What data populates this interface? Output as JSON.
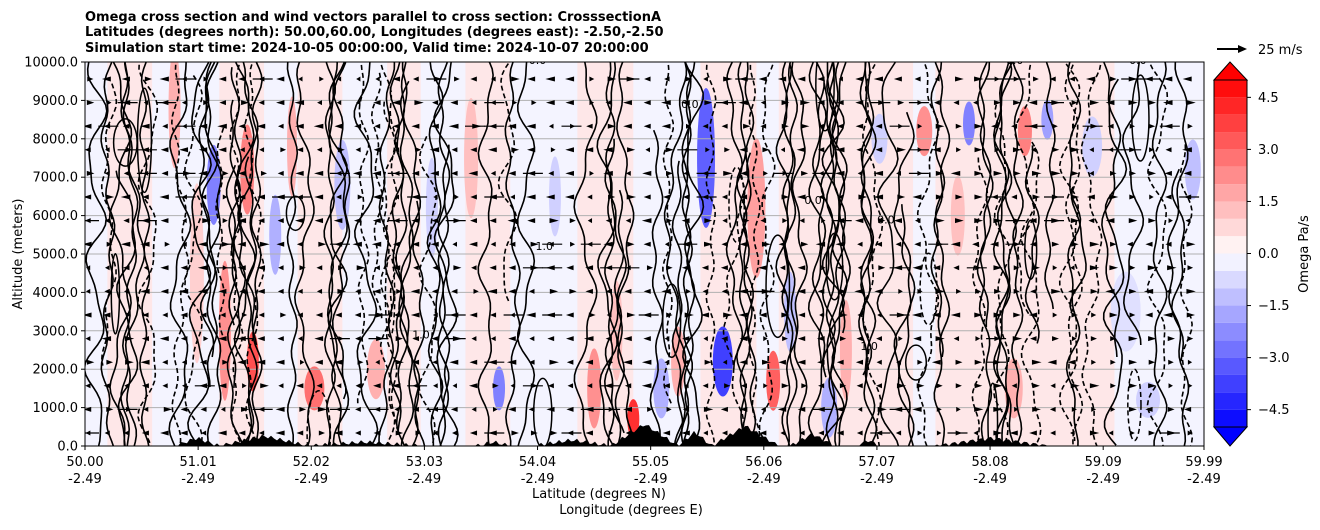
{
  "chart_data": {
    "type": "contour-cross-section",
    "title_lines": [
      "Omega cross section and wind vectors parallel to cross section: CrosssectionA",
      "Latitudes (degrees north): 50.00,60.00, Longitudes (degrees east): -2.50,-2.50",
      "Simulation start time: 2024-10-05 00:00:00, Valid time: 2024-10-07 20:00:00"
    ],
    "ylabel": "Altitude (meters)",
    "xlabel_lat": "Latitude (degrees N)",
    "xlabel_lon": "Longitude (degrees E)",
    "ylim": [
      0,
      10000
    ],
    "yticks": [
      0,
      1000,
      2000,
      3000,
      4000,
      5000,
      6000,
      7000,
      8000,
      9000,
      10000
    ],
    "ytick_labels": [
      "0.0",
      "1000.0",
      "2000.0",
      "3000.0",
      "4000.0",
      "5000.0",
      "6000.0",
      "7000.0",
      "8000.0",
      "9000.0",
      "10000.0"
    ],
    "xticks_lat": [
      "50.00",
      "51.01",
      "52.02",
      "53.03",
      "54.04",
      "55.05",
      "56.06",
      "57.07",
      "58.08",
      "59.09",
      "59.99"
    ],
    "xticks_lon": [
      "-2.49",
      "-2.49",
      "-2.49",
      "-2.49",
      "-2.49",
      "-2.49",
      "-2.49",
      "-2.49",
      "-2.49",
      "-2.49",
      "-2.49"
    ],
    "colorbar": {
      "label": "Omega Pa/s",
      "range": [
        -5.0,
        5.0
      ],
      "extend": "both",
      "tick_values": [
        4.5,
        3.0,
        1.5,
        0.0,
        -1.5,
        -3.0,
        -4.5
      ],
      "tick_labels": [
        "4.5",
        "3.0",
        "1.5",
        "0.0",
        "−1.5",
        "−3.0",
        "−4.5"
      ]
    },
    "quiver_key_label": "25 m/s",
    "contour_labels": [
      {
        "text": "0.0",
        "lat": 54.04,
        "alt": 9950
      },
      {
        "text": "0.0",
        "lat": 55.4,
        "alt": 8800
      },
      {
        "text": "0.0",
        "lat": 56.5,
        "alt": 6300
      },
      {
        "text": "0.0",
        "lat": 57.15,
        "alt": 5800
      },
      {
        "text": "1.0",
        "lat": 54.1,
        "alt": 5100
      },
      {
        "text": "1.0",
        "lat": 53.0,
        "alt": 2800
      },
      {
        "text": "1.0",
        "lat": 57.0,
        "alt": 2500
      },
      {
        "text": "0.0",
        "lat": 59.4,
        "alt": 9950
      },
      {
        "text": "0.0",
        "lat": 58.3,
        "alt": 9950
      }
    ],
    "colors": {
      "positive": "#ff0000",
      "negative": "#0000ff",
      "neutral": "#ffffff",
      "terrain": "#000000",
      "grid": "#b0b0b0"
    }
  }
}
